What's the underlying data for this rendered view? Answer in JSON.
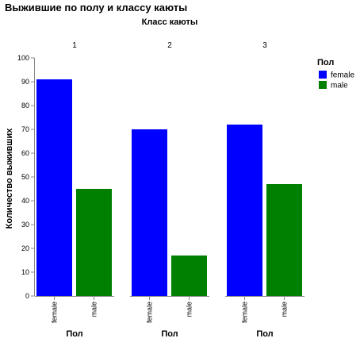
{
  "chart_data": {
    "type": "bar",
    "title": "Выжившие по полу и классу каюты",
    "facet_title": "Класс каюты",
    "facets": [
      "1",
      "2",
      "3"
    ],
    "categories": [
      "female",
      "male"
    ],
    "values": [
      [
        91,
        45
      ],
      [
        70,
        17
      ],
      [
        72,
        47
      ]
    ],
    "xlabel": "Пол",
    "ylabel": "Количество выживших",
    "ylim": [
      0,
      100
    ],
    "yticks": [
      0,
      10,
      20,
      30,
      40,
      50,
      60,
      70,
      80,
      90,
      100
    ],
    "grid": false,
    "legend": {
      "title": "Пол",
      "placement": "right",
      "entries": [
        "female",
        "male"
      ]
    },
    "colors": {
      "female": "#0000ff",
      "male": "#008000"
    }
  }
}
